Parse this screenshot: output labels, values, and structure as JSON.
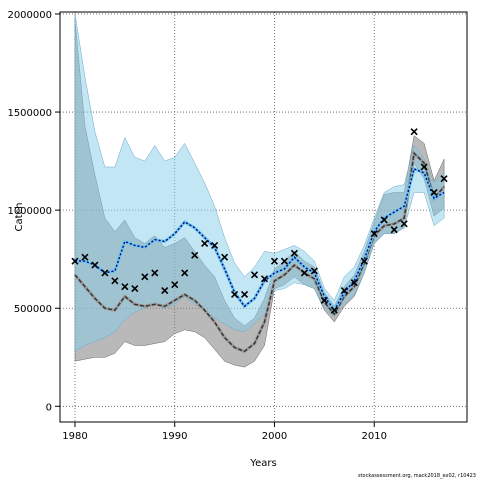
{
  "chart_data": {
    "type": "line",
    "xlabel": "Years",
    "ylabel": "Catch",
    "xlim": [
      1978.5,
      2019.3
    ],
    "ylim": [
      -80000,
      2010000
    ],
    "x_ticks": [
      1980,
      1990,
      2000,
      2010
    ],
    "y_ticks": [
      0,
      500000,
      1000000,
      1500000,
      2000000
    ],
    "grid": true,
    "grid_style": "dotted",
    "credit": "stockassessment.org, mack2018_ex02, r10423",
    "colors": {
      "blue_band": "#87CEEB",
      "grey_band": "#808080",
      "blue_line": "#00008B",
      "grey_line": "#333333",
      "marker": "#000000"
    },
    "series": [
      {
        "style": "blue-dotted-line-with-band",
        "x": [
          1980,
          1981,
          1982,
          1983,
          1984,
          1985,
          1986,
          1987,
          1988,
          1989,
          1990,
          1991,
          1992,
          1993,
          1994,
          1995,
          1996,
          1997,
          1998,
          1999,
          2000,
          2001,
          2002,
          2003,
          2004,
          2005,
          2006,
          2007,
          2008,
          2009,
          2010,
          2011,
          2012,
          2013,
          2014,
          2015,
          2016,
          2017
        ],
        "values": [
          740000,
          740000,
          720000,
          680000,
          690000,
          840000,
          820000,
          810000,
          850000,
          840000,
          880000,
          940000,
          910000,
          860000,
          810000,
          700000,
          580000,
          510000,
          550000,
          640000,
          680000,
          700000,
          760000,
          710000,
          680000,
          560000,
          490000,
          580000,
          640000,
          750000,
          890000,
          960000,
          990000,
          1020000,
          1210000,
          1190000,
          1060000,
          1090000
        ],
        "upper": [
          2000000,
          1680000,
          1400000,
          1220000,
          1220000,
          1370000,
          1270000,
          1250000,
          1330000,
          1250000,
          1270000,
          1340000,
          1240000,
          1140000,
          1020000,
          860000,
          730000,
          660000,
          710000,
          790000,
          780000,
          800000,
          820000,
          790000,
          740000,
          600000,
          540000,
          660000,
          710000,
          820000,
          960000,
          1090000,
          1120000,
          1130000,
          1330000,
          1260000,
          1140000,
          1190000
        ],
        "lower": [
          280000,
          310000,
          330000,
          350000,
          380000,
          440000,
          480000,
          500000,
          520000,
          500000,
          520000,
          560000,
          520000,
          490000,
          450000,
          420000,
          390000,
          380000,
          420000,
          470000,
          590000,
          600000,
          630000,
          620000,
          600000,
          500000,
          460000,
          520000,
          570000,
          680000,
          830000,
          880000,
          880000,
          910000,
          1090000,
          1090000,
          920000,
          960000
        ]
      },
      {
        "style": "grey-dashed-line-with-band",
        "x": [
          1980,
          1981,
          1982,
          1983,
          1984,
          1985,
          1986,
          1987,
          1988,
          1989,
          1990,
          1991,
          1992,
          1993,
          1994,
          1995,
          1996,
          1997,
          1998,
          1999,
          2000,
          2001,
          2002,
          2003,
          2004,
          2005,
          2006,
          2007,
          2008,
          2009,
          2010,
          2011,
          2012,
          2013,
          2014,
          2015,
          2016,
          2017
        ],
        "values": [
          670000,
          610000,
          550000,
          500000,
          490000,
          560000,
          520000,
          510000,
          520000,
          510000,
          540000,
          570000,
          540000,
          490000,
          430000,
          350000,
          300000,
          280000,
          320000,
          430000,
          640000,
          670000,
          720000,
          680000,
          650000,
          530000,
          470000,
          560000,
          610000,
          730000,
          870000,
          920000,
          930000,
          960000,
          1290000,
          1240000,
          1060000,
          1120000
        ],
        "upper": [
          1970000,
          1430000,
          1180000,
          960000,
          890000,
          950000,
          860000,
          830000,
          870000,
          810000,
          830000,
          860000,
          790000,
          720000,
          660000,
          540000,
          450000,
          410000,
          450000,
          550000,
          700000,
          740000,
          790000,
          740000,
          710000,
          580000,
          510000,
          610000,
          670000,
          790000,
          940000,
          1080000,
          1090000,
          1090000,
          1380000,
          1340000,
          1150000,
          1260000
        ],
        "lower": [
          230000,
          240000,
          250000,
          250000,
          270000,
          330000,
          310000,
          310000,
          320000,
          330000,
          370000,
          390000,
          380000,
          350000,
          290000,
          230000,
          210000,
          200000,
          230000,
          310000,
          600000,
          620000,
          660000,
          620000,
          600000,
          490000,
          430000,
          510000,
          560000,
          680000,
          830000,
          880000,
          880000,
          910000,
          1240000,
          1160000,
          970000,
          1010000
        ]
      }
    ],
    "observations": {
      "marker": "x",
      "x": [
        1980,
        1981,
        1982,
        1983,
        1984,
        1985,
        1986,
        1987,
        1988,
        1989,
        1990,
        1991,
        1992,
        1993,
        1994,
        1995,
        1996,
        1997,
        1998,
        1999,
        2000,
        2001,
        2002,
        2003,
        2004,
        2005,
        2006,
        2007,
        2008,
        2009,
        2010,
        2011,
        2012,
        2013,
        2014,
        2015,
        2016,
        2017
      ],
      "values": [
        740000,
        760000,
        720000,
        680000,
        640000,
        610000,
        600000,
        660000,
        680000,
        590000,
        620000,
        680000,
        770000,
        830000,
        820000,
        760000,
        570000,
        570000,
        670000,
        650000,
        740000,
        740000,
        780000,
        680000,
        690000,
        540000,
        490000,
        590000,
        630000,
        740000,
        880000,
        950000,
        900000,
        930000,
        1400000,
        1220000,
        1090000,
        1160000
      ]
    }
  }
}
